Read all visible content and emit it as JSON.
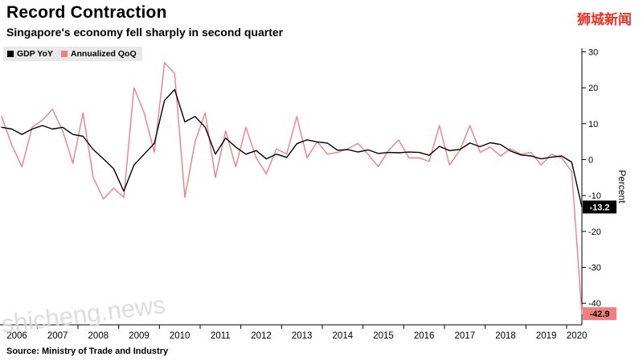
{
  "header": {
    "title": "Record Contraction",
    "subtitle": "Singapore's economy fell sharply in second quarter",
    "logo": "狮城新闻"
  },
  "legend": {
    "items": [
      {
        "label": "GDP YoY",
        "color": "#000000"
      },
      {
        "label": "Annualized QoQ",
        "color": "#f08080"
      }
    ]
  },
  "source": "Source: Ministry of Trade and Industry",
  "watermark": "shicheng.news",
  "chart_data": {
    "type": "line",
    "title": "Record Contraction",
    "subtitle": "Singapore's economy fell sharply in second quarter",
    "ylabel": "Percent",
    "xlabel": "",
    "ylim": [
      -46,
      31
    ],
    "grid": false,
    "legend_position": "top-left",
    "yticks": [
      30,
      20,
      10,
      0,
      -10,
      -20,
      -30,
      -40
    ],
    "x_tick_labels": [
      "2006",
      "2007",
      "2008",
      "2009",
      "2010",
      "2011",
      "2012",
      "2013",
      "2014",
      "2015",
      "2016",
      "2017",
      "2018",
      "2019",
      "2020"
    ],
    "x": [
      "2006 Q1",
      "2006 Q2",
      "2006 Q3",
      "2006 Q4",
      "2007 Q1",
      "2007 Q2",
      "2007 Q3",
      "2007 Q4",
      "2008 Q1",
      "2008 Q2",
      "2008 Q3",
      "2008 Q4",
      "2009 Q1",
      "2009 Q2",
      "2009 Q3",
      "2009 Q4",
      "2010 Q1",
      "2010 Q2",
      "2010 Q3",
      "2010 Q4",
      "2011 Q1",
      "2011 Q2",
      "2011 Q3",
      "2011 Q4",
      "2012 Q1",
      "2012 Q2",
      "2012 Q3",
      "2012 Q4",
      "2013 Q1",
      "2013 Q2",
      "2013 Q3",
      "2013 Q4",
      "2014 Q1",
      "2014 Q2",
      "2014 Q3",
      "2014 Q4",
      "2015 Q1",
      "2015 Q2",
      "2015 Q3",
      "2015 Q4",
      "2016 Q1",
      "2016 Q2",
      "2016 Q3",
      "2016 Q4",
      "2017 Q1",
      "2017 Q2",
      "2017 Q3",
      "2017 Q4",
      "2018 Q1",
      "2018 Q2",
      "2018 Q3",
      "2018 Q4",
      "2019 Q1",
      "2019 Q2",
      "2019 Q3",
      "2019 Q4",
      "2020 Q1",
      "2020 Q2"
    ],
    "series": [
      {
        "name": "GDP YoY",
        "color": "#000000",
        "values": [
          9.0,
          8.5,
          7.0,
          8.5,
          9.5,
          8.5,
          9.0,
          7.0,
          6.5,
          2.8,
          0.2,
          -2.5,
          -8.8,
          -1.5,
          1.5,
          4.5,
          16.5,
          19.5,
          10.5,
          12.0,
          9.0,
          1.5,
          6.0,
          3.5,
          1.5,
          2.5,
          0.2,
          1.5,
          0.6,
          4.4,
          5.5,
          4.9,
          4.6,
          2.6,
          2.8,
          2.1,
          2.7,
          1.7,
          2.0,
          1.9,
          2.1,
          2.0,
          1.2,
          3.7,
          2.5,
          2.8,
          4.6,
          3.6,
          4.7,
          4.2,
          2.4,
          1.3,
          1.0,
          0.2,
          0.7,
          1.0,
          -0.7,
          -13.2
        ]
      },
      {
        "name": "Annualized QoQ",
        "color": "#f08080",
        "values": [
          12.0,
          4.0,
          -2.0,
          9.0,
          11.0,
          14.0,
          8.0,
          -1.0,
          13.0,
          -5.0,
          -11.0,
          -8.0,
          -10.5,
          20.0,
          13.0,
          2.0,
          27.0,
          24.0,
          -10.5,
          5.0,
          13.0,
          -5.0,
          8.0,
          -2.0,
          9.0,
          0.5,
          -4.0,
          3.0,
          1.5,
          12.0,
          0.5,
          5.0,
          1.5,
          2.0,
          3.0,
          4.5,
          1.5,
          -2.0,
          2.5,
          5.5,
          0.5,
          0.5,
          -0.5,
          9.5,
          -1.5,
          2.5,
          9.5,
          2.0,
          3.5,
          1.0,
          3.0,
          1.5,
          2.0,
          -1.5,
          1.5,
          0.5,
          -3.3,
          -42.9
        ]
      }
    ],
    "annotations": [
      {
        "label": "-13.2",
        "value": -13.2,
        "bg": "#000000",
        "fg": "#ffffff"
      },
      {
        "label": "-42.9",
        "value": -42.9,
        "bg": "#f08080",
        "fg": "#000000"
      }
    ]
  }
}
